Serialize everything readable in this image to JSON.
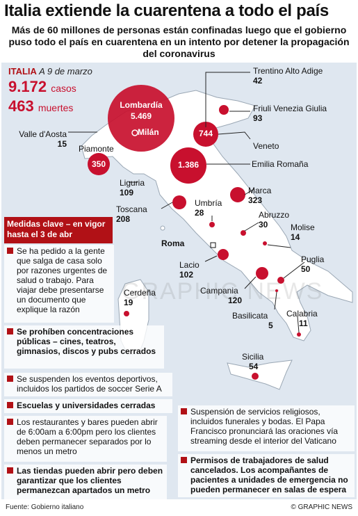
{
  "header": {
    "title": "Italia extiende la cuarentena a todo el país",
    "subtitle": "Más de 60 millones de personas están confinadas luego que el gobierno puso todo el país en cuarentena en un intento por detener la propagación del coronavirus"
  },
  "stats": {
    "country": "ITALIA",
    "date": "A 9 de marzo",
    "cases_value": "9.172",
    "cases_unit": "casos",
    "deaths_value": "463",
    "deaths_unit": "muertes"
  },
  "regions": [
    {
      "name": "Lombardía",
      "value": "5.469"
    },
    {
      "name": "Trentino Alto Adige",
      "value": "42"
    },
    {
      "name": "Friuli Venezia Giulia",
      "value": "93"
    },
    {
      "name": "Valle d'Aosta",
      "value": "15"
    },
    {
      "name": "Veneto",
      "value": "744"
    },
    {
      "name": "Piamonte",
      "value": "350"
    },
    {
      "name": "Emilia Romaña",
      "value": "1.386"
    },
    {
      "name": "Liguria",
      "value": "109"
    },
    {
      "name": "Marca",
      "value": "323"
    },
    {
      "name": "Toscana",
      "value": "208"
    },
    {
      "name": "Umbría",
      "value": "28"
    },
    {
      "name": "Abruzzo",
      "value": "30"
    },
    {
      "name": "Molise",
      "value": "14"
    },
    {
      "name": "Lacio",
      "value": "102"
    },
    {
      "name": "Puglia",
      "value": "50"
    },
    {
      "name": "Cerdeña",
      "value": "19"
    },
    {
      "name": "Campania",
      "value": "120"
    },
    {
      "name": "Basilicata",
      "value": "5"
    },
    {
      "name": "Calabria",
      "value": "11"
    },
    {
      "name": "Sicilia",
      "value": "54"
    }
  ],
  "cities": {
    "milan": "Milán",
    "rome": "Roma"
  },
  "measures": {
    "heading": "Medidas clave – en vigor hasta el 3 de abr",
    "items": [
      "Se ha pedido a la gente que salga de casa solo por razones urgentes de salud o trabajo. Para viajar debe presentarse un documento que explique la razón",
      "Se prohíben concentraciones públicas – cines, teatros, gimnasios, discos y pubs cerrados",
      "Se suspenden los eventos deportivos, incluidos los partidos de soccer Serie A",
      "Escuelas y universidades cerradas",
      "Los restaurantes y bares pueden abrir de 6:00am a 6:00pm pero los clientes deben permanecer separados por lo menos un metro",
      "Las tiendas pueden abrir pero deben garantizar que los clientes permanezcan apartados un metro",
      "Suspensión de servicios religiosos, incluidos funerales y bodas. El Papa Francisco pronunciará las oraciones vía streaming desde el interior del Vaticano",
      "Permisos de trabajadores de salud cancelados. Los acompañantes de pacientes a unidades de emergencia no pueden permanecer en salas de espera"
    ]
  },
  "footer": {
    "source": "Fuente: Gobierno italiano",
    "credit": "© GRAPHIC NEWS"
  },
  "watermark": "GRAPHIC NEWS",
  "colors": {
    "accent": "#b11116",
    "bubble": "#c8102e",
    "sea": "#dfe7f0",
    "land": "#ffffff"
  }
}
